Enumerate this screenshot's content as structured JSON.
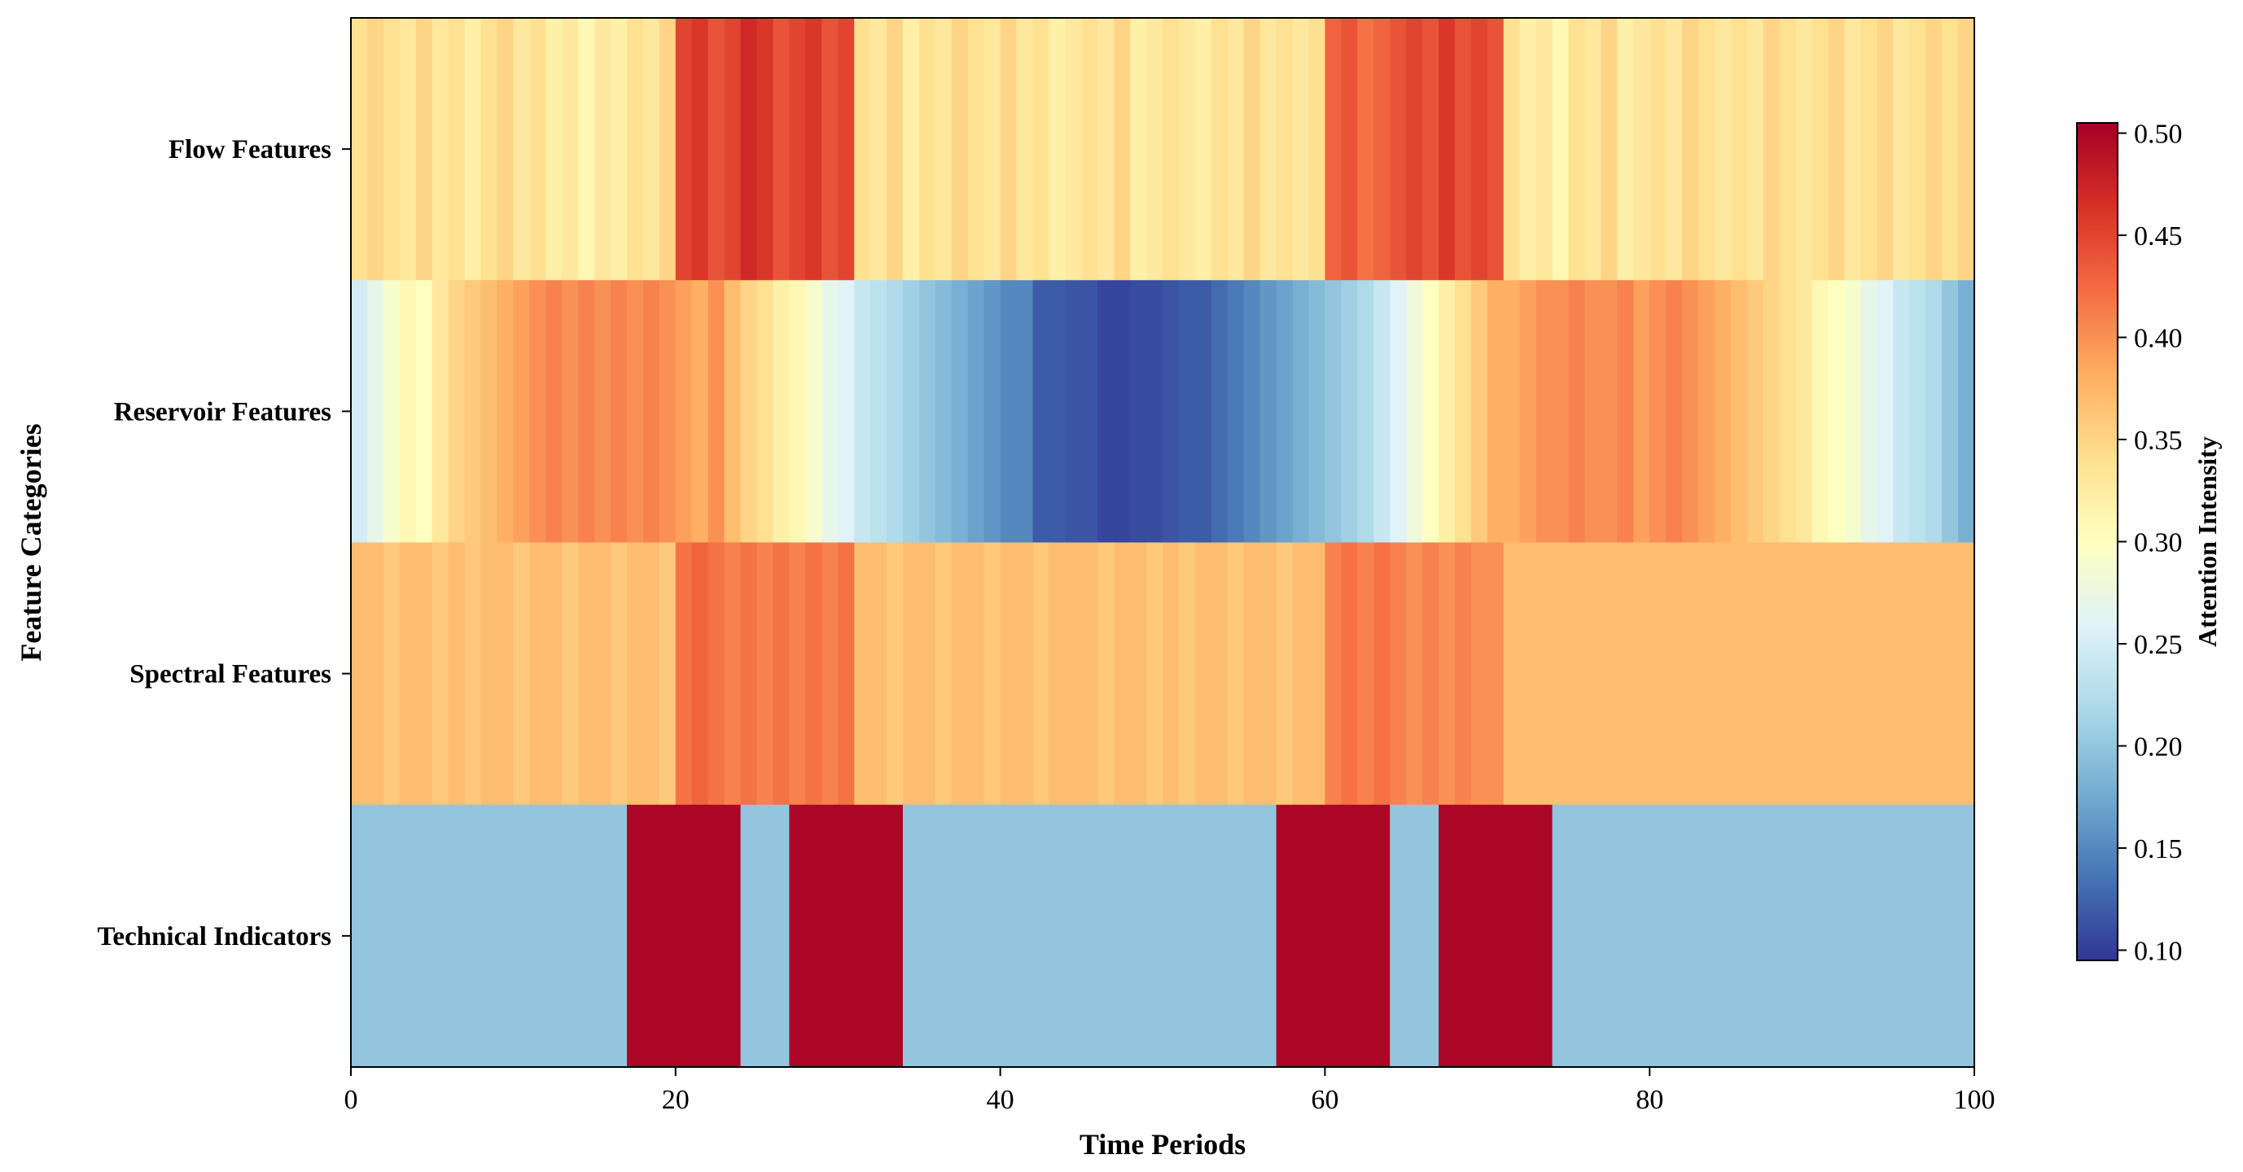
{
  "chart_data": {
    "type": "heatmap",
    "title": "",
    "xlabel": "Time Periods",
    "ylabel": "Feature Categories",
    "xlim": [
      0,
      100
    ],
    "x_ticks": [
      0,
      20,
      40,
      60,
      80,
      100
    ],
    "x_tick_labels": [
      "0",
      "20",
      "40",
      "60",
      "80",
      "100"
    ],
    "rows": [
      "Flow Features",
      "Reservoir Features",
      "Spectral Features",
      "Technical Indicators"
    ],
    "colorbar": {
      "label": "Attention Intensity",
      "vmin": 0.095,
      "vmax": 0.505,
      "ticks": [
        0.1,
        0.15,
        0.2,
        0.25,
        0.3,
        0.35,
        0.4,
        0.45,
        0.5
      ],
      "tick_labels": [
        "0.10",
        "0.15",
        "0.20",
        "0.25",
        "0.30",
        "0.35",
        "0.40",
        "0.45",
        "0.50"
      ],
      "colormap": "RdYlBu_r"
    },
    "series": [
      {
        "name": "Flow Features",
        "values": [
          0.34,
          0.35,
          0.34,
          0.33,
          0.35,
          0.33,
          0.34,
          0.32,
          0.34,
          0.35,
          0.33,
          0.34,
          0.32,
          0.33,
          0.31,
          0.33,
          0.32,
          0.34,
          0.33,
          0.35,
          0.45,
          0.46,
          0.44,
          0.45,
          0.47,
          0.46,
          0.44,
          0.45,
          0.46,
          0.44,
          0.45,
          0.34,
          0.33,
          0.35,
          0.32,
          0.34,
          0.33,
          0.35,
          0.34,
          0.33,
          0.35,
          0.33,
          0.34,
          0.32,
          0.33,
          0.34,
          0.33,
          0.35,
          0.32,
          0.33,
          0.34,
          0.33,
          0.32,
          0.34,
          0.33,
          0.35,
          0.33,
          0.34,
          0.33,
          0.34,
          0.43,
          0.44,
          0.42,
          0.43,
          0.44,
          0.45,
          0.44,
          0.46,
          0.44,
          0.45,
          0.44,
          0.34,
          0.32,
          0.33,
          0.31,
          0.34,
          0.33,
          0.35,
          0.32,
          0.33,
          0.34,
          0.33,
          0.35,
          0.34,
          0.33,
          0.34,
          0.33,
          0.35,
          0.34,
          0.33,
          0.34,
          0.35,
          0.33,
          0.34,
          0.35,
          0.33,
          0.34,
          0.35,
          0.34,
          0.35
        ]
      },
      {
        "name": "Reservoir Features",
        "values": [
          0.25,
          0.27,
          0.29,
          0.31,
          0.3,
          0.33,
          0.35,
          0.36,
          0.37,
          0.38,
          0.39,
          0.4,
          0.41,
          0.4,
          0.41,
          0.4,
          0.41,
          0.4,
          0.41,
          0.4,
          0.39,
          0.38,
          0.4,
          0.37,
          0.35,
          0.34,
          0.32,
          0.31,
          0.29,
          0.27,
          0.26,
          0.24,
          0.23,
          0.22,
          0.21,
          0.2,
          0.19,
          0.18,
          0.17,
          0.16,
          0.15,
          0.15,
          0.12,
          0.12,
          0.115,
          0.115,
          0.105,
          0.105,
          0.11,
          0.11,
          0.115,
          0.12,
          0.12,
          0.13,
          0.14,
          0.15,
          0.16,
          0.17,
          0.18,
          0.19,
          0.2,
          0.21,
          0.22,
          0.24,
          0.26,
          0.28,
          0.3,
          0.32,
          0.34,
          0.36,
          0.38,
          0.38,
          0.39,
          0.4,
          0.4,
          0.41,
          0.4,
          0.4,
          0.41,
          0.39,
          0.4,
          0.41,
          0.4,
          0.39,
          0.38,
          0.37,
          0.36,
          0.35,
          0.34,
          0.33,
          0.31,
          0.3,
          0.29,
          0.27,
          0.26,
          0.24,
          0.23,
          0.22,
          0.2,
          0.18
        ]
      },
      {
        "name": "Spectral Features",
        "values": [
          0.37,
          0.37,
          0.36,
          0.37,
          0.37,
          0.36,
          0.37,
          0.36,
          0.37,
          0.37,
          0.36,
          0.37,
          0.37,
          0.36,
          0.37,
          0.37,
          0.36,
          0.37,
          0.37,
          0.36,
          0.42,
          0.43,
          0.42,
          0.41,
          0.42,
          0.41,
          0.42,
          0.41,
          0.42,
          0.41,
          0.42,
          0.37,
          0.37,
          0.36,
          0.37,
          0.37,
          0.36,
          0.37,
          0.37,
          0.36,
          0.37,
          0.37,
          0.36,
          0.37,
          0.37,
          0.37,
          0.36,
          0.37,
          0.37,
          0.36,
          0.37,
          0.36,
          0.37,
          0.37,
          0.36,
          0.37,
          0.37,
          0.36,
          0.37,
          0.37,
          0.41,
          0.42,
          0.41,
          0.42,
          0.41,
          0.4,
          0.41,
          0.4,
          0.41,
          0.4,
          0.4,
          0.37,
          0.37,
          0.37,
          0.37,
          0.37,
          0.37,
          0.37,
          0.37,
          0.37,
          0.37,
          0.37,
          0.37,
          0.37,
          0.37,
          0.37,
          0.37,
          0.37,
          0.37,
          0.37,
          0.37,
          0.37,
          0.37,
          0.37,
          0.37,
          0.37,
          0.37,
          0.37,
          0.37,
          0.37
        ]
      },
      {
        "name": "Technical Indicators",
        "values": [
          0.2,
          0.2,
          0.2,
          0.2,
          0.2,
          0.2,
          0.2,
          0.2,
          0.2,
          0.2,
          0.2,
          0.2,
          0.2,
          0.2,
          0.2,
          0.2,
          0.2,
          0.5,
          0.5,
          0.5,
          0.5,
          0.5,
          0.5,
          0.5,
          0.2,
          0.2,
          0.2,
          0.5,
          0.5,
          0.5,
          0.5,
          0.5,
          0.5,
          0.5,
          0.2,
          0.2,
          0.2,
          0.2,
          0.2,
          0.2,
          0.2,
          0.2,
          0.2,
          0.2,
          0.2,
          0.2,
          0.2,
          0.2,
          0.2,
          0.2,
          0.2,
          0.2,
          0.2,
          0.2,
          0.2,
          0.2,
          0.2,
          0.5,
          0.5,
          0.5,
          0.5,
          0.5,
          0.5,
          0.5,
          0.2,
          0.2,
          0.2,
          0.5,
          0.5,
          0.5,
          0.5,
          0.5,
          0.5,
          0.5,
          0.2,
          0.2,
          0.2,
          0.2,
          0.2,
          0.2,
          0.2,
          0.2,
          0.2,
          0.2,
          0.2,
          0.2,
          0.2,
          0.2,
          0.2,
          0.2,
          0.2,
          0.2,
          0.2,
          0.2,
          0.2,
          0.2,
          0.2,
          0.2,
          0.2,
          0.2
        ]
      }
    ]
  }
}
